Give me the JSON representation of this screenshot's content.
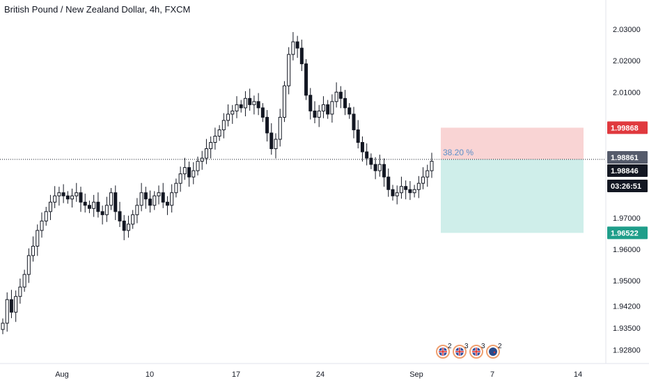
{
  "title": "British Pound / New Zealand Dollar, 4h, FXCM",
  "colors": {
    "up": "#131722",
    "down": "#131722",
    "stop_zone": "#f9d4d4",
    "target_zone": "#cfeeea",
    "stop_tag": "#e0393e",
    "target_tag": "#1f9e8a",
    "current_tag": "#131722",
    "entry_tag": "#555b6b",
    "ratio_text": "#5b8fc9",
    "axis_text": "#131722"
  },
  "chart_data": {
    "type": "candlestick",
    "y_ticks": [
      "2.03000",
      "2.02000",
      "2.01000",
      "1.97000",
      "1.96000",
      "1.95000",
      "1.94200",
      "1.93500",
      "1.92800"
    ],
    "y_tick_values": [
      2.03,
      2.02,
      2.01,
      1.97,
      1.96,
      1.95,
      1.942,
      1.935,
      1.928
    ],
    "x_ticks": [
      "Aug",
      "10",
      "17",
      "24",
      "Sep",
      "7",
      "14"
    ],
    "position": {
      "entry": 1.98861,
      "stop": 1.99868,
      "target": 1.96522,
      "ratio_label": "38.20 %"
    },
    "last_price": 1.98846,
    "countdown": "03:26:51",
    "price_tags": {
      "stop": "1.99868",
      "entry": "1.98861",
      "last": "1.98846",
      "target": "1.96522"
    },
    "event_badges": [
      {
        "icon": "uk-flag-icon",
        "count": "2"
      },
      {
        "icon": "uk-flag-icon",
        "count": "3"
      },
      {
        "icon": "uk-flag-icon",
        "count": "3"
      },
      {
        "icon": "nz-flag-icon",
        "count": "2"
      }
    ],
    "close_path": [
      1.9365,
      1.944,
      1.94,
      1.945,
      1.948,
      1.952,
      1.958,
      1.961,
      1.966,
      1.969,
      1.972,
      1.975,
      1.977,
      1.978,
      1.977,
      1.976,
      1.977,
      1.978,
      1.975,
      1.974,
      1.973,
      1.975,
      1.972,
      1.971,
      1.974,
      1.978,
      1.972,
      1.969,
      1.966,
      1.968,
      1.971,
      1.974,
      1.978,
      1.976,
      1.974,
      1.977,
      1.978,
      1.975,
      1.974,
      1.978,
      1.981,
      1.984,
      1.986,
      1.983,
      1.985,
      1.988,
      1.989,
      1.992,
      1.994,
      1.996,
      1.998,
      2.001,
      2.003,
      2.004,
      2.006,
      2.005,
      2.008,
      2.006,
      2.007,
      2.005,
      2.002,
      1.997,
      1.992,
      1.995,
      2.002,
      2.012,
      2.022,
      2.026,
      2.024,
      2.019,
      2.009,
      2.004,
      2.002,
      2.004,
      2.006,
      2.003,
      2.007,
      2.01,
      2.008,
      2.005,
      2.003,
      1.998,
      1.994,
      1.991,
      1.989,
      1.987,
      1.985,
      1.987,
      1.983,
      1.979,
      1.977,
      1.978,
      1.98,
      1.979,
      1.978,
      1.979,
      1.981,
      1.983,
      1.985,
      1.988
    ]
  }
}
